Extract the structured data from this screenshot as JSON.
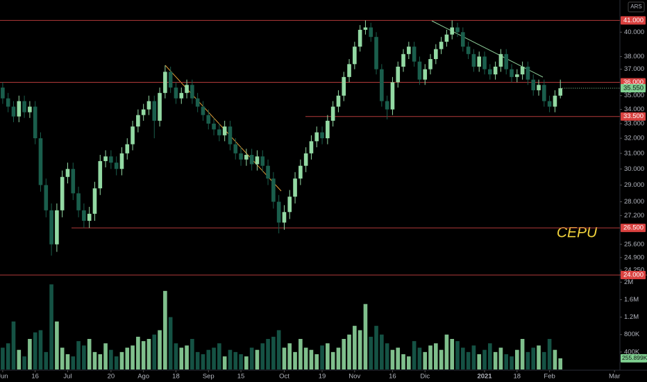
{
  "chart_data": {
    "type": "candlestick",
    "annotation": "CEPU",
    "currency": "ARS",
    "up_color": "#93d9a3",
    "down_color": "#1a5e4c",
    "volume_up_color": "#7fbf8c",
    "volume_down_color": "#155244",
    "log_scale": true,
    "xlim": [
      -0.5,
      114
    ],
    "xticks": [
      {
        "value": 0,
        "label": "Jun"
      },
      {
        "value": 6,
        "label": "16"
      },
      {
        "value": 12,
        "label": "Jul"
      },
      {
        "value": 20,
        "label": "20"
      },
      {
        "value": 26,
        "label": "Ago"
      },
      {
        "value": 32,
        "label": "18"
      },
      {
        "value": 38,
        "label": "Sep"
      },
      {
        "value": 44,
        "label": "15"
      },
      {
        "value": 52,
        "label": "Oct"
      },
      {
        "value": 59,
        "label": "19"
      },
      {
        "value": 65,
        "label": "Nov"
      },
      {
        "value": 72,
        "label": "16"
      },
      {
        "value": 78,
        "label": "Dic"
      },
      {
        "value": 89,
        "label": "2021"
      },
      {
        "value": 95,
        "label": "18"
      },
      {
        "value": 101,
        "label": "Feb"
      },
      {
        "value": 113,
        "label": "Mar"
      }
    ],
    "ylim": [
      24,
      42.8
    ],
    "yticks": [
      {
        "value": 40,
        "label": "40.000"
      },
      {
        "value": 38,
        "label": "38.000"
      },
      {
        "value": 37,
        "label": "37.000"
      },
      {
        "value": 35,
        "label": "35.000"
      },
      {
        "value": 34,
        "label": "34.000"
      },
      {
        "value": 33,
        "label": "33.000"
      },
      {
        "value": 32,
        "label": "32.000"
      },
      {
        "value": 31,
        "label": "31.000"
      },
      {
        "value": 30,
        "label": "30.000"
      },
      {
        "value": 29,
        "label": "29.000"
      },
      {
        "value": 28,
        "label": "28.000"
      },
      {
        "value": 27.2,
        "label": "27.200"
      },
      {
        "value": 25.6,
        "label": "25.600"
      },
      {
        "value": 24.9,
        "label": "24.900"
      },
      {
        "value": 24.25,
        "label": "24.250"
      }
    ],
    "level_color": "#b33a3a",
    "levels": [
      {
        "value": 41,
        "label": "41.000"
      },
      {
        "value": 36,
        "label": "36.000"
      },
      {
        "value": 33.5,
        "label": "33.500"
      },
      {
        "value": 26.5,
        "label": "26.500"
      },
      {
        "value": 24,
        "label": "24.000"
      }
    ],
    "last_price": {
      "value": 35.55,
      "label": "35.550"
    },
    "open": [
      35.6,
      34.8,
      34.2,
      33.5,
      34.6,
      33.8,
      34.2,
      32.0,
      29.0,
      27.5,
      25.6,
      27.5,
      29.5,
      30.0,
      28.5,
      27.5,
      26.9,
      27.3,
      28.8,
      30.5,
      30.8,
      30.4,
      30.0,
      31.0,
      31.6,
      32.8,
      33.6,
      34.0,
      34.6,
      33.2,
      35.2,
      36.8,
      35.6,
      34.8,
      35.2,
      35.8,
      34.8,
      34.2,
      33.6,
      33.0,
      32.6,
      32.2,
      32.8,
      31.6,
      31.0,
      30.6,
      30.9,
      30.3,
      30.8,
      30.2,
      29.4,
      28.0,
      26.8,
      27.4,
      28.3,
      29.4,
      30.2,
      31.0,
      31.8,
      32.4,
      32.0,
      33.2,
      34.2,
      35.0,
      36.4,
      37.4,
      38.8,
      40.2,
      40.4,
      39.6,
      37.0,
      34.6,
      34.0,
      36.0,
      37.2,
      38.2,
      38.8,
      37.6,
      36.2,
      37.0,
      37.8,
      38.6,
      39.2,
      39.8,
      40.4,
      40.0,
      38.8,
      38.2,
      37.2,
      38.0,
      37.0,
      36.6,
      37.2,
      38.2,
      37.0,
      36.4,
      36.6,
      37.2,
      36.2,
      35.4,
      35.8,
      34.6,
      34.2,
      35.0
    ],
    "high": [
      36.0,
      35.2,
      34.6,
      35.0,
      35.0,
      34.6,
      34.6,
      32.4,
      29.4,
      27.9,
      27.9,
      29.9,
      30.4,
      30.4,
      28.9,
      27.9,
      27.7,
      29.2,
      30.9,
      31.2,
      31.2,
      30.8,
      31.4,
      32.0,
      33.2,
      34.0,
      34.4,
      35.0,
      35.0,
      35.6,
      37.3,
      37.2,
      36.0,
      35.6,
      36.2,
      36.2,
      35.2,
      34.6,
      34.0,
      33.4,
      33.0,
      33.2,
      33.2,
      32.0,
      31.4,
      31.3,
      31.3,
      31.2,
      31.2,
      30.6,
      29.8,
      28.4,
      27.8,
      28.7,
      29.8,
      30.6,
      31.4,
      32.2,
      32.8,
      32.8,
      33.6,
      34.6,
      35.4,
      36.8,
      37.8,
      39.2,
      40.6,
      41.0,
      40.8,
      40.0,
      37.4,
      35.0,
      36.4,
      37.6,
      38.6,
      39.2,
      39.2,
      38.0,
      37.4,
      38.2,
      39.0,
      39.6,
      40.2,
      41.0,
      40.8,
      40.4,
      39.2,
      38.6,
      38.4,
      38.4,
      37.4,
      37.6,
      38.6,
      38.6,
      37.4,
      37.0,
      37.6,
      37.6,
      36.6,
      36.2,
      36.2,
      35.0,
      35.4,
      36.2
    ],
    "low": [
      34.4,
      33.8,
      33.1,
      33.1,
      33.4,
      33.4,
      31.6,
      28.6,
      27.1,
      25.0,
      25.2,
      27.1,
      29.1,
      28.1,
      27.1,
      26.5,
      26.5,
      26.9,
      28.4,
      30.1,
      30.0,
      29.6,
      29.6,
      30.6,
      31.2,
      32.4,
      33.2,
      33.6,
      32.0,
      32.8,
      34.8,
      35.2,
      34.4,
      34.4,
      34.8,
      34.4,
      33.8,
      33.2,
      32.6,
      32.2,
      31.8,
      31.8,
      31.2,
      30.6,
      30.2,
      30.2,
      29.9,
      29.9,
      29.8,
      29.0,
      27.6,
      26.2,
      26.4,
      27.0,
      27.9,
      29.0,
      29.8,
      30.6,
      31.4,
      31.6,
      31.6,
      32.8,
      33.8,
      34.6,
      36.0,
      37.0,
      38.4,
      39.8,
      39.2,
      36.6,
      34.2,
      33.3,
      33.6,
      35.6,
      36.8,
      37.8,
      37.2,
      35.8,
      35.8,
      36.6,
      37.4,
      38.2,
      38.8,
      39.4,
      39.6,
      38.4,
      37.8,
      36.8,
      36.8,
      36.6,
      36.2,
      36.2,
      36.8,
      36.6,
      36.0,
      36.0,
      36.2,
      35.8,
      35.0,
      35.0,
      34.2,
      33.8,
      33.8,
      34.8
    ],
    "close": [
      34.8,
      34.2,
      33.5,
      34.6,
      33.8,
      34.2,
      32.0,
      29.0,
      27.5,
      25.6,
      27.5,
      29.5,
      30.0,
      28.5,
      27.5,
      26.9,
      27.3,
      28.8,
      30.5,
      30.8,
      30.4,
      30.0,
      31.0,
      31.6,
      32.8,
      33.6,
      34.0,
      34.6,
      33.2,
      35.2,
      36.8,
      35.6,
      34.8,
      35.2,
      35.8,
      34.8,
      34.2,
      33.6,
      33.0,
      32.6,
      32.2,
      32.8,
      31.6,
      31.0,
      30.6,
      30.9,
      30.3,
      30.8,
      30.2,
      29.4,
      28.0,
      26.8,
      27.4,
      28.3,
      29.4,
      30.2,
      31.0,
      31.8,
      32.4,
      32.0,
      33.2,
      34.2,
      35.0,
      36.4,
      37.4,
      38.8,
      40.2,
      40.4,
      39.6,
      37.0,
      34.6,
      34.0,
      36.0,
      37.2,
      38.2,
      38.8,
      37.6,
      36.2,
      37.0,
      37.8,
      38.6,
      39.2,
      39.8,
      40.4,
      40.0,
      38.8,
      38.2,
      37.2,
      38.0,
      37.0,
      36.6,
      37.2,
      38.2,
      37.0,
      36.4,
      36.6,
      37.2,
      36.2,
      35.4,
      35.8,
      34.6,
      34.2,
      35.0,
      35.55
    ],
    "volume": [
      500000,
      600000,
      1100000,
      450000,
      300000,
      700000,
      850000,
      900000,
      400000,
      1950000,
      1100000,
      500000,
      350000,
      300000,
      650000,
      550000,
      700000,
      400000,
      350000,
      600000,
      450000,
      300000,
      400000,
      500000,
      550000,
      750000,
      650000,
      700000,
      800000,
      900000,
      1800000,
      1200000,
      600000,
      500000,
      550000,
      700000,
      400000,
      350000,
      450000,
      500000,
      600000,
      300000,
      450000,
      400000,
      350000,
      300000,
      500000,
      450000,
      600000,
      700000,
      750000,
      900000,
      500000,
      600000,
      400000,
      700000,
      500000,
      450000,
      350000,
      550000,
      600000,
      400000,
      500000,
      700000,
      800000,
      1000000,
      900000,
      1500000,
      750000,
      1000000,
      800000,
      600000,
      450000,
      500000,
      350000,
      300000,
      650000,
      500000,
      400000,
      550000,
      600000,
      450000,
      800000,
      700000,
      650000,
      500000,
      400000,
      550000,
      350000,
      450000,
      600000,
      400000,
      500000,
      350000,
      300000,
      450000,
      700000,
      400000,
      500000,
      550000,
      400000,
      700000,
      450000,
      255899
    ],
    "volume_ylim": [
      0,
      2100000
    ],
    "volume_yticks": [
      {
        "value": 2000000,
        "label": "2M"
      },
      {
        "value": 1600000,
        "label": "1.6M"
      },
      {
        "value": 1200000,
        "label": "1.2M"
      },
      {
        "value": 800000,
        "label": "800K"
      },
      {
        "value": 400000,
        "label": "400K"
      }
    ],
    "last_volume": {
      "value": 255899,
      "label": "255.899K"
    }
  }
}
